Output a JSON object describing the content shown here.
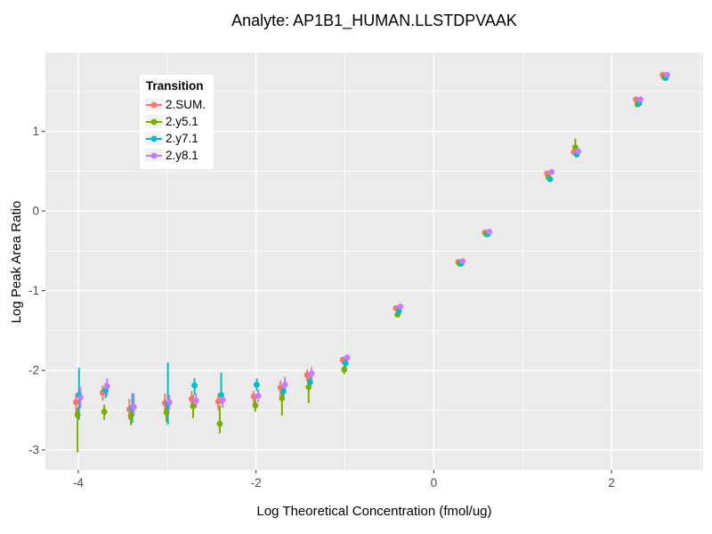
{
  "title": "Analyte: AP1B1_HUMAN.LLSTDPVAAK",
  "legend": {
    "title": "Transition"
  },
  "chart_data": {
    "type": "scatter",
    "title": "Analyte: AP1B1_HUMAN.LLSTDPVAAK",
    "xlabel": "Log Theoretical Concentration (fmol/ug)",
    "ylabel": "Log Peak Area Ratio",
    "xlim": [
      -4.37,
      3.03
    ],
    "ylim": [
      -3.25,
      1.99
    ],
    "xticks": [
      -4,
      -2,
      0,
      2
    ],
    "yticks": [
      -3,
      -2,
      -1,
      0,
      1
    ],
    "x_minor_ticks": [
      -3,
      -1,
      1,
      3
    ],
    "y_minor_ticks": [
      -2.5,
      -1.5,
      -0.5,
      0.5,
      1.5
    ],
    "grid": true,
    "panel_color": "#EBEBEB",
    "gridline_color": "#FFFFFF",
    "tick_label_color": "#4d4d4d",
    "legend_position": "inside-top-left",
    "series": [
      {
        "name": "2.SUM.",
        "color": "#F8766D",
        "points": [
          {
            "x": -4.0,
            "y": -2.4,
            "ymin": -2.57,
            "ymax": -2.29
          },
          {
            "x": -3.7,
            "y": -2.28,
            "ymin": -2.38,
            "ymax": -2.19
          },
          {
            "x": -3.4,
            "y": -2.49,
            "ymin": -2.62,
            "ymax": -2.36
          },
          {
            "x": -3.0,
            "y": -2.41,
            "ymin": -2.54,
            "ymax": -2.29
          },
          {
            "x": -2.7,
            "y": -2.36,
            "ymin": -2.46,
            "ymax": -2.26
          },
          {
            "x": -2.4,
            "y": -2.39,
            "ymin": -2.5,
            "ymax": -2.29
          },
          {
            "x": -2.0,
            "y": -2.33,
            "ymin": -2.41,
            "ymax": -2.26
          },
          {
            "x": -1.7,
            "y": -2.22,
            "ymin": -2.32,
            "ymax": -2.13
          },
          {
            "x": -1.4,
            "y": -2.06,
            "ymin": -2.14,
            "ymax": -1.99
          },
          {
            "x": -1.0,
            "y": -1.87,
            "ymin": -1.92,
            "ymax": -1.83
          },
          {
            "x": -0.4,
            "y": -1.22
          },
          {
            "x": 0.3,
            "y": -0.64
          },
          {
            "x": 0.6,
            "y": -0.27
          },
          {
            "x": 1.3,
            "y": 0.47
          },
          {
            "x": 1.6,
            "y": 0.74
          },
          {
            "x": 2.3,
            "y": 1.4
          },
          {
            "x": 2.6,
            "y": 1.71
          }
        ]
      },
      {
        "name": "2.y5.1",
        "color": "#7CAE00",
        "points": [
          {
            "x": -4.0,
            "y": -2.56,
            "ymin": -3.03,
            "ymax": -2.47
          },
          {
            "x": -3.7,
            "y": -2.52,
            "ymin": -2.62,
            "ymax": -2.43
          },
          {
            "x": -3.4,
            "y": -2.57,
            "ymin": -2.69,
            "ymax": -2.46
          },
          {
            "x": -3.0,
            "y": -2.53,
            "ymin": -2.65,
            "ymax": -2.42
          },
          {
            "x": -2.7,
            "y": -2.45,
            "ymin": -2.6,
            "ymax": -2.31
          },
          {
            "x": -2.4,
            "y": -2.67,
            "ymin": -2.79,
            "ymax": -2.44
          },
          {
            "x": -2.0,
            "y": -2.44,
            "ymin": -2.52,
            "ymax": -2.36
          },
          {
            "x": -1.7,
            "y": -2.35,
            "ymin": -2.57,
            "ymax": -2.24
          },
          {
            "x": -1.4,
            "y": -2.21,
            "ymin": -2.41,
            "ymax": -2.1
          },
          {
            "x": -1.0,
            "y": -1.99,
            "ymin": -2.05,
            "ymax": -1.94
          },
          {
            "x": -0.4,
            "y": -1.3
          },
          {
            "x": 0.3,
            "y": -0.66
          },
          {
            "x": 0.6,
            "y": -0.29
          },
          {
            "x": 1.3,
            "y": 0.42
          },
          {
            "x": 1.6,
            "y": 0.8,
            "ymin": 0.72,
            "ymax": 0.91
          },
          {
            "x": 2.3,
            "y": 1.34
          },
          {
            "x": 2.6,
            "y": 1.68
          }
        ]
      },
      {
        "name": "2.y7.1",
        "color": "#00BFC4",
        "points": [
          {
            "x": -4.0,
            "y": -2.31,
            "ymin": -2.62,
            "ymax": -1.97
          },
          {
            "x": -3.7,
            "y": -2.25,
            "ymin": -2.35,
            "ymax": -2.16
          },
          {
            "x": -3.4,
            "y": -2.47,
            "ymin": -2.66,
            "ymax": -2.29
          },
          {
            "x": -3.0,
            "y": -2.42,
            "ymin": -2.68,
            "ymax": -1.9
          },
          {
            "x": -2.7,
            "y": -2.19,
            "ymin": -2.31,
            "ymax": -2.1
          },
          {
            "x": -2.4,
            "y": -2.31,
            "ymin": -2.42,
            "ymax": -2.03
          },
          {
            "x": -2.0,
            "y": -2.18,
            "ymin": -2.26,
            "ymax": -2.1
          },
          {
            "x": -1.7,
            "y": -2.26,
            "ymin": -2.36,
            "ymax": -2.17
          },
          {
            "x": -1.4,
            "y": -2.15,
            "ymin": -2.23,
            "ymax": -2.08
          },
          {
            "x": -1.0,
            "y": -1.91,
            "ymin": -1.96,
            "ymax": -1.87
          },
          {
            "x": -0.4,
            "y": -1.26
          },
          {
            "x": 0.3,
            "y": -0.66
          },
          {
            "x": 0.6,
            "y": -0.29
          },
          {
            "x": 1.3,
            "y": 0.4
          },
          {
            "x": 1.6,
            "y": 0.71
          },
          {
            "x": 2.3,
            "y": 1.35
          },
          {
            "x": 2.6,
            "y": 1.67
          }
        ]
      },
      {
        "name": "2.y8.1",
        "color": "#C77CFF",
        "points": [
          {
            "x": -4.0,
            "y": -2.34,
            "ymin": -2.48,
            "ymax": -2.21
          },
          {
            "x": -3.7,
            "y": -2.2,
            "ymin": -2.32,
            "ymax": -2.1
          },
          {
            "x": -3.4,
            "y": -2.46,
            "ymin": -2.57,
            "ymax": -2.29
          },
          {
            "x": -3.0,
            "y": -2.4,
            "ymin": -2.5,
            "ymax": -2.31
          },
          {
            "x": -2.7,
            "y": -2.38,
            "ymin": -2.47,
            "ymax": -2.29
          },
          {
            "x": -2.4,
            "y": -2.37,
            "ymin": -2.47,
            "ymax": -2.28
          },
          {
            "x": -2.0,
            "y": -2.32,
            "ymin": -2.4,
            "ymax": -2.24
          },
          {
            "x": -1.7,
            "y": -2.18,
            "ymin": -2.3,
            "ymax": -2.08
          },
          {
            "x": -1.4,
            "y": -2.04,
            "ymin": -2.12,
            "ymax": -1.96
          },
          {
            "x": -1.0,
            "y": -1.84,
            "ymin": -1.89,
            "ymax": -1.8
          },
          {
            "x": -0.4,
            "y": -1.2
          },
          {
            "x": 0.3,
            "y": -0.63
          },
          {
            "x": 0.6,
            "y": -0.26
          },
          {
            "x": 1.3,
            "y": 0.49
          },
          {
            "x": 1.6,
            "y": 0.75
          },
          {
            "x": 2.3,
            "y": 1.4
          },
          {
            "x": 2.6,
            "y": 1.71
          }
        ]
      }
    ]
  }
}
